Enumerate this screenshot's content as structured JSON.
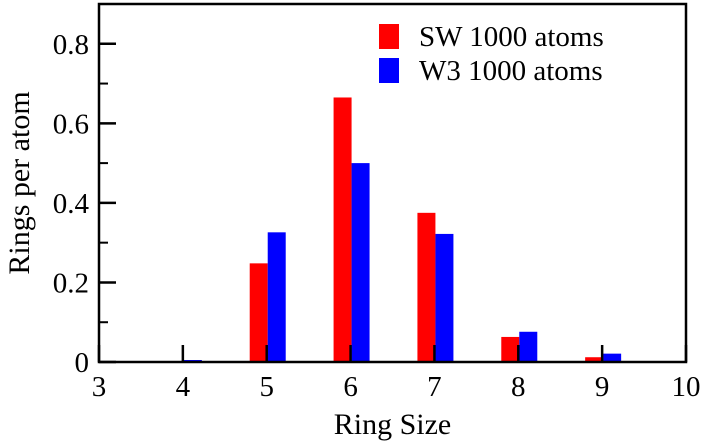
{
  "chart_data": {
    "type": "bar",
    "xlabel": "Ring Size",
    "ylabel": "Rings per atom",
    "xlim": [
      3,
      10
    ],
    "ylim": [
      0,
      0.9
    ],
    "xticks": [
      3,
      4,
      5,
      6,
      7,
      8,
      9,
      10
    ],
    "yticks": [
      0,
      0.2,
      0.4,
      0.6,
      0.8
    ],
    "xtick_labels": [
      "3",
      "4",
      "5",
      "6",
      "7",
      "8",
      "9",
      "10"
    ],
    "ytick_labels": [
      "0",
      "0.2",
      "0.4",
      "0.6",
      "0.8"
    ],
    "categories": [
      4,
      5,
      6,
      7,
      8,
      9
    ],
    "series": [
      {
        "name": "SW 1000 atoms",
        "color": "#ff0000",
        "values": [
          0.0,
          0.248,
          0.665,
          0.375,
          0.063,
          0.012
        ]
      },
      {
        "name": "W3 1000 atoms",
        "color": "#0000ff",
        "values": [
          0.005,
          0.326,
          0.5,
          0.322,
          0.076,
          0.021
        ]
      }
    ],
    "legend_position": "top-right",
    "grid": false
  }
}
